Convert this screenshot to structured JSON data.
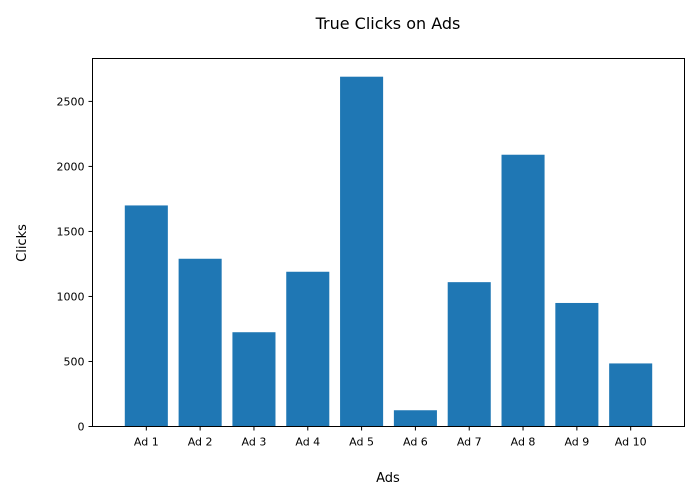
{
  "chart_data": {
    "type": "bar",
    "title": "True Clicks on Ads",
    "xlabel": "Ads",
    "ylabel": "Clicks",
    "categories": [
      "Ad 1",
      "Ad 2",
      "Ad 3",
      "Ad 4",
      "Ad 5",
      "Ad 6",
      "Ad 7",
      "Ad 8",
      "Ad 9",
      "Ad 10"
    ],
    "values": [
      1700,
      1290,
      725,
      1190,
      2690,
      125,
      1110,
      2090,
      950,
      485
    ],
    "ylim": [
      0,
      2830
    ],
    "yticks": [
      0,
      500,
      1000,
      1500,
      2000,
      2500
    ],
    "bar_color": "#1f77b4",
    "grid": false,
    "legend": "none"
  }
}
